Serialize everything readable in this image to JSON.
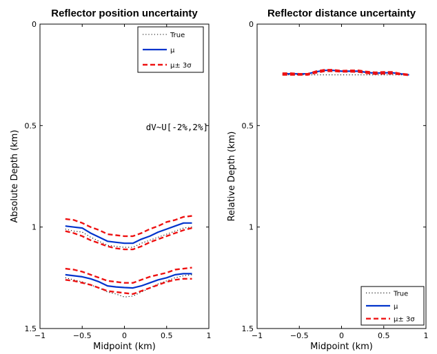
{
  "colors": {
    "true": "#000000",
    "mu": "#0033cc",
    "band": "#ee1111"
  },
  "chart_data": [
    {
      "type": "line",
      "title": "Reflector position uncertainty",
      "xlabel": "Midpoint (km)",
      "ylabel": "Absolute Depth (km)",
      "xlim": [
        -1,
        1
      ],
      "ylim": [
        0,
        1.5
      ],
      "y_inverted": true,
      "xticks": [
        -1,
        -0.5,
        0,
        0.5,
        1
      ],
      "xtick_labels": [
        "−1",
        "−0.5",
        "0",
        "0.5",
        "1"
      ],
      "yticks": [
        0,
        0.5,
        1,
        1.5
      ],
      "ytick_labels": [
        "0",
        "0.5",
        "1",
        "1.5"
      ],
      "legend_loc": "top-right",
      "legend": [
        {
          "key": "true",
          "label": "True"
        },
        {
          "key": "mu",
          "label": "μ"
        },
        {
          "key": "band",
          "label": "μ± 3σ"
        }
      ],
      "annotation": "dV~U[-2%,2%]",
      "x": [
        -0.7,
        -0.6,
        -0.5,
        -0.4,
        -0.3,
        -0.2,
        -0.1,
        0.0,
        0.1,
        0.2,
        0.3,
        0.4,
        0.5,
        0.6,
        0.7,
        0.8
      ],
      "series": [
        {
          "key": "true",
          "values": [
            1.01,
            1.02,
            1.025,
            1.05,
            1.07,
            1.09,
            1.095,
            1.1,
            1.1,
            1.08,
            1.065,
            1.05,
            1.035,
            1.02,
            1.005,
            1.0
          ]
        },
        {
          "key": "mu",
          "values": [
            0.995,
            1.0,
            1.005,
            1.03,
            1.05,
            1.07,
            1.075,
            1.08,
            1.08,
            1.06,
            1.045,
            1.025,
            1.01,
            0.995,
            0.98,
            0.98
          ]
        },
        {
          "key": "band",
          "values": [
            0.96,
            0.965,
            0.98,
            1.0,
            1.015,
            1.035,
            1.04,
            1.045,
            1.045,
            1.03,
            1.01,
            0.995,
            0.975,
            0.965,
            0.95,
            0.945
          ]
        },
        {
          "key": "band",
          "values": [
            1.02,
            1.03,
            1.045,
            1.065,
            1.08,
            1.095,
            1.105,
            1.11,
            1.11,
            1.095,
            1.075,
            1.06,
            1.045,
            1.03,
            1.015,
            1.005
          ]
        },
        {
          "key": "true",
          "values": [
            1.25,
            1.26,
            1.27,
            1.285,
            1.3,
            1.32,
            1.33,
            1.345,
            1.34,
            1.32,
            1.3,
            1.28,
            1.265,
            1.25,
            1.24,
            1.235
          ]
        },
        {
          "key": "mu",
          "values": [
            1.235,
            1.24,
            1.245,
            1.255,
            1.27,
            1.29,
            1.295,
            1.298,
            1.3,
            1.29,
            1.275,
            1.26,
            1.25,
            1.235,
            1.23,
            1.23
          ]
        },
        {
          "key": "band",
          "values": [
            1.205,
            1.21,
            1.22,
            1.235,
            1.25,
            1.265,
            1.27,
            1.275,
            1.275,
            1.26,
            1.245,
            1.235,
            1.225,
            1.21,
            1.205,
            1.2
          ]
        },
        {
          "key": "band",
          "values": [
            1.26,
            1.265,
            1.275,
            1.285,
            1.3,
            1.315,
            1.32,
            1.325,
            1.33,
            1.315,
            1.3,
            1.285,
            1.27,
            1.26,
            1.255,
            1.255
          ]
        }
      ]
    },
    {
      "type": "line",
      "title": "Reflector distance uncertainty",
      "xlabel": "Midpoint (km)",
      "ylabel": "Relative Depth (km)",
      "xlim": [
        -1,
        1
      ],
      "ylim": [
        0,
        1.5
      ],
      "y_inverted": true,
      "xticks": [
        -1,
        -0.5,
        0,
        0.5,
        1
      ],
      "xtick_labels": [
        "−1",
        "−0.5",
        "0",
        "0.5",
        "1"
      ],
      "yticks": [
        0,
        0.5,
        1,
        1.5
      ],
      "ytick_labels": [
        "0",
        "0.5",
        "1",
        "1.5"
      ],
      "legend_loc": "bottom-right",
      "legend": [
        {
          "key": "true",
          "label": "True"
        },
        {
          "key": "mu",
          "label": "μ"
        },
        {
          "key": "band",
          "label": "μ± 3σ"
        }
      ],
      "x": [
        -0.7,
        -0.6,
        -0.5,
        -0.4,
        -0.3,
        -0.2,
        -0.1,
        0.0,
        0.1,
        0.2,
        0.3,
        0.4,
        0.5,
        0.6,
        0.7,
        0.8
      ],
      "series": [
        {
          "key": "true",
          "values": [
            0.0,
            0.0,
            0.0,
            0.0,
            0.0,
            0.0,
            0.0,
            0.0,
            0.0,
            0.0,
            0.0,
            0.0,
            0.0,
            0.0,
            0.0,
            0.0
          ]
        },
        {
          "key": "true",
          "values": [
            0.25,
            0.25,
            0.25,
            0.25,
            0.25,
            0.25,
            0.25,
            0.25,
            0.25,
            0.25,
            0.25,
            0.25,
            0.25,
            0.25,
            0.25,
            0.25
          ]
        },
        {
          "key": "mu",
          "values": [
            0.245,
            0.245,
            0.245,
            0.245,
            0.235,
            0.228,
            0.228,
            0.232,
            0.232,
            0.232,
            0.238,
            0.242,
            0.24,
            0.24,
            0.245,
            0.25
          ]
        },
        {
          "key": "band",
          "values": [
            0.242,
            0.242,
            0.245,
            0.245,
            0.232,
            0.225,
            0.225,
            0.23,
            0.228,
            0.228,
            0.234,
            0.238,
            0.236,
            0.236,
            0.244,
            0.248
          ]
        },
        {
          "key": "band",
          "values": [
            0.25,
            0.25,
            0.25,
            0.25,
            0.24,
            0.232,
            0.232,
            0.235,
            0.235,
            0.236,
            0.242,
            0.246,
            0.244,
            0.244,
            0.248,
            0.252
          ]
        }
      ]
    }
  ]
}
